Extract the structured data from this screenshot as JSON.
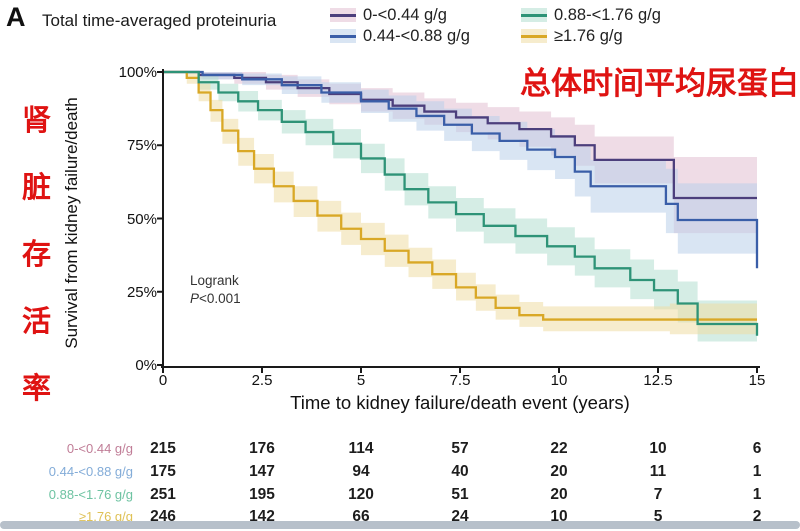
{
  "panel_label": "A",
  "header": {
    "title": "Total time-averaged proteinuria"
  },
  "overlay": {
    "top_right_text": "总体时间平均尿蛋白",
    "left_vertical_chars": [
      "肾",
      "脏",
      "存",
      "活",
      "率"
    ],
    "text_color": "#df1312"
  },
  "annotation": {
    "line1": "Logrank",
    "p_italic": "P",
    "p_rest": "<0.001"
  },
  "chart_data": {
    "type": "line",
    "subtype": "kaplan-meier-step-with-confidence-bands",
    "title": "Total time-averaged proteinuria",
    "xlabel": "Time to kidney failure/death event (years)",
    "ylabel": "Survival from kidney failure/death",
    "xlim": [
      0,
      15
    ],
    "ylim": [
      0,
      100
    ],
    "xticks": [
      0,
      2.5,
      5,
      7.5,
      10,
      12.5,
      15
    ],
    "xtick_labels": [
      "0",
      "2.5",
      "5",
      "7.5",
      "10",
      "12.5",
      "15"
    ],
    "yticks": [
      100,
      75,
      50,
      25,
      0
    ],
    "ytick_labels": [
      "100%",
      "75%",
      "50%",
      "25%",
      "0%"
    ],
    "grid": false,
    "legend_position": "top",
    "axis_color": "#1a1a1a",
    "series": [
      {
        "name": "0-<0.44 g/g",
        "line_color": "#4c3f7c",
        "band_color": "#e2bfd2",
        "points": [
          [
            0,
            100,
            100,
            100
          ],
          [
            0.9,
            99,
            97.5,
            100
          ],
          [
            1.8,
            98,
            96,
            100
          ],
          [
            2.6,
            96.5,
            94,
            99
          ],
          [
            3.4,
            94.5,
            91.5,
            97.5
          ],
          [
            4.2,
            92.5,
            89,
            96
          ],
          [
            5,
            90.5,
            86.5,
            94.5
          ],
          [
            5.8,
            88.5,
            84,
            93
          ],
          [
            6.6,
            86.5,
            82,
            91
          ],
          [
            7.4,
            84.5,
            79.5,
            89.5
          ],
          [
            8.2,
            82.5,
            77,
            88
          ],
          [
            9,
            80.5,
            74.5,
            86.5
          ],
          [
            9.8,
            78,
            71.5,
            84.5
          ],
          [
            10.4,
            75,
            68,
            82
          ],
          [
            10.9,
            70,
            62,
            78
          ],
          [
            12.9,
            57,
            45,
            71
          ],
          [
            15,
            57,
            45,
            71
          ]
        ]
      },
      {
        "name": "0.44-<0.88 g/g",
        "line_color": "#3a5ea8",
        "band_color": "#b9d0ea",
        "points": [
          [
            0,
            100,
            100,
            100
          ],
          [
            1,
            99,
            97.5,
            100
          ],
          [
            2,
            97.5,
            95.5,
            99.5
          ],
          [
            3,
            95.5,
            92.5,
            98.5
          ],
          [
            4,
            93,
            89.5,
            96.5
          ],
          [
            5,
            90,
            86,
            94
          ],
          [
            5.7,
            87.5,
            83,
            92
          ],
          [
            6.4,
            85,
            80,
            90
          ],
          [
            7.1,
            82,
            76.5,
            87.5
          ],
          [
            7.8,
            79,
            73,
            85
          ],
          [
            8.5,
            76.5,
            70,
            83
          ],
          [
            9.2,
            73.5,
            66.5,
            80.5
          ],
          [
            9.9,
            71,
            63.5,
            78.5
          ],
          [
            10.4,
            66,
            57.5,
            74.5
          ],
          [
            10.8,
            61,
            52,
            70
          ],
          [
            12.7,
            55,
            45,
            67
          ],
          [
            13,
            49.5,
            38,
            62
          ],
          [
            14.9,
            49.5,
            38,
            62
          ],
          [
            15,
            33,
            14,
            56
          ]
        ]
      },
      {
        "name": "0.88-<1.76 g/g",
        "line_color": "#2e9377",
        "band_color": "#b2decf",
        "points": [
          [
            0,
            100,
            100,
            100
          ],
          [
            0.9,
            96.5,
            94,
            99
          ],
          [
            1.4,
            93,
            90,
            96
          ],
          [
            1.9,
            90,
            86.5,
            93.5
          ],
          [
            2.4,
            87,
            83.5,
            90.5
          ],
          [
            3,
            83,
            79,
            87
          ],
          [
            3.6,
            79.5,
            75,
            84
          ],
          [
            4.3,
            75.5,
            70.5,
            80.5
          ],
          [
            5,
            70.5,
            65.5,
            75.5
          ],
          [
            5.6,
            65,
            59.5,
            70.5
          ],
          [
            6.1,
            60,
            54.5,
            65.5
          ],
          [
            6.7,
            55.5,
            50,
            61
          ],
          [
            7.4,
            51.5,
            45.5,
            57
          ],
          [
            8.1,
            47.5,
            41.5,
            53.5
          ],
          [
            8.9,
            44,
            38,
            50
          ],
          [
            9.7,
            40.5,
            34,
            47
          ],
          [
            10.4,
            37,
            30.5,
            43.5
          ],
          [
            10.9,
            33,
            26.5,
            39.5
          ],
          [
            11.8,
            29,
            22.5,
            36
          ],
          [
            12.4,
            25.5,
            19,
            32.5
          ],
          [
            13,
            21,
            14.5,
            28.5
          ],
          [
            13.5,
            14,
            8,
            22
          ],
          [
            14.8,
            14,
            8,
            22
          ],
          [
            15,
            10,
            4,
            20
          ]
        ]
      },
      {
        "name": "≥1.76 g/g",
        "line_color": "#d9a826",
        "band_color": "#efdda4",
        "points": [
          [
            0,
            100,
            100,
            100
          ],
          [
            0.6,
            98,
            96,
            100
          ],
          [
            0.9,
            93,
            90,
            96
          ],
          [
            1.2,
            87,
            83,
            90.5
          ],
          [
            1.5,
            80,
            75.5,
            84
          ],
          [
            1.9,
            73,
            68,
            77.5
          ],
          [
            2.3,
            67,
            62,
            72
          ],
          [
            2.8,
            61,
            55.5,
            66
          ],
          [
            3.3,
            56,
            50.5,
            61
          ],
          [
            3.9,
            51,
            45.5,
            56
          ],
          [
            4.5,
            46.5,
            41,
            52
          ],
          [
            5,
            43,
            37.5,
            48.5
          ],
          [
            5.6,
            39,
            33.5,
            44.5
          ],
          [
            6.2,
            35,
            30,
            40
          ],
          [
            6.8,
            31,
            26,
            36
          ],
          [
            7.4,
            26.5,
            22,
            31.5
          ],
          [
            7.9,
            23,
            18.5,
            27.5
          ],
          [
            8.4,
            19.5,
            15.5,
            24
          ],
          [
            9,
            17,
            13,
            21.5
          ],
          [
            9.6,
            15.5,
            11.5,
            20
          ],
          [
            12.8,
            15.5,
            10.5,
            21
          ],
          [
            15,
            15.5,
            10,
            21.5
          ]
        ]
      }
    ]
  },
  "risk_table": {
    "time_columns": [
      0,
      2.5,
      5,
      7.5,
      10,
      12.5,
      15
    ],
    "rows": [
      {
        "label": "0-<0.44 g/g",
        "label_color": "#c07d97",
        "values": [
          215,
          176,
          114,
          57,
          22,
          10,
          6
        ]
      },
      {
        "label": "0.44-<0.88 g/g",
        "label_color": "#83acd8",
        "values": [
          175,
          147,
          94,
          40,
          20,
          11,
          1
        ]
      },
      {
        "label": "0.88-<1.76 g/g",
        "label_color": "#6ec3a2",
        "values": [
          251,
          195,
          120,
          51,
          20,
          7,
          1
        ]
      },
      {
        "label": "≥1.76 g/g",
        "label_color": "#dfc155",
        "values": [
          246,
          142,
          66,
          24,
          10,
          5,
          2
        ]
      }
    ]
  }
}
